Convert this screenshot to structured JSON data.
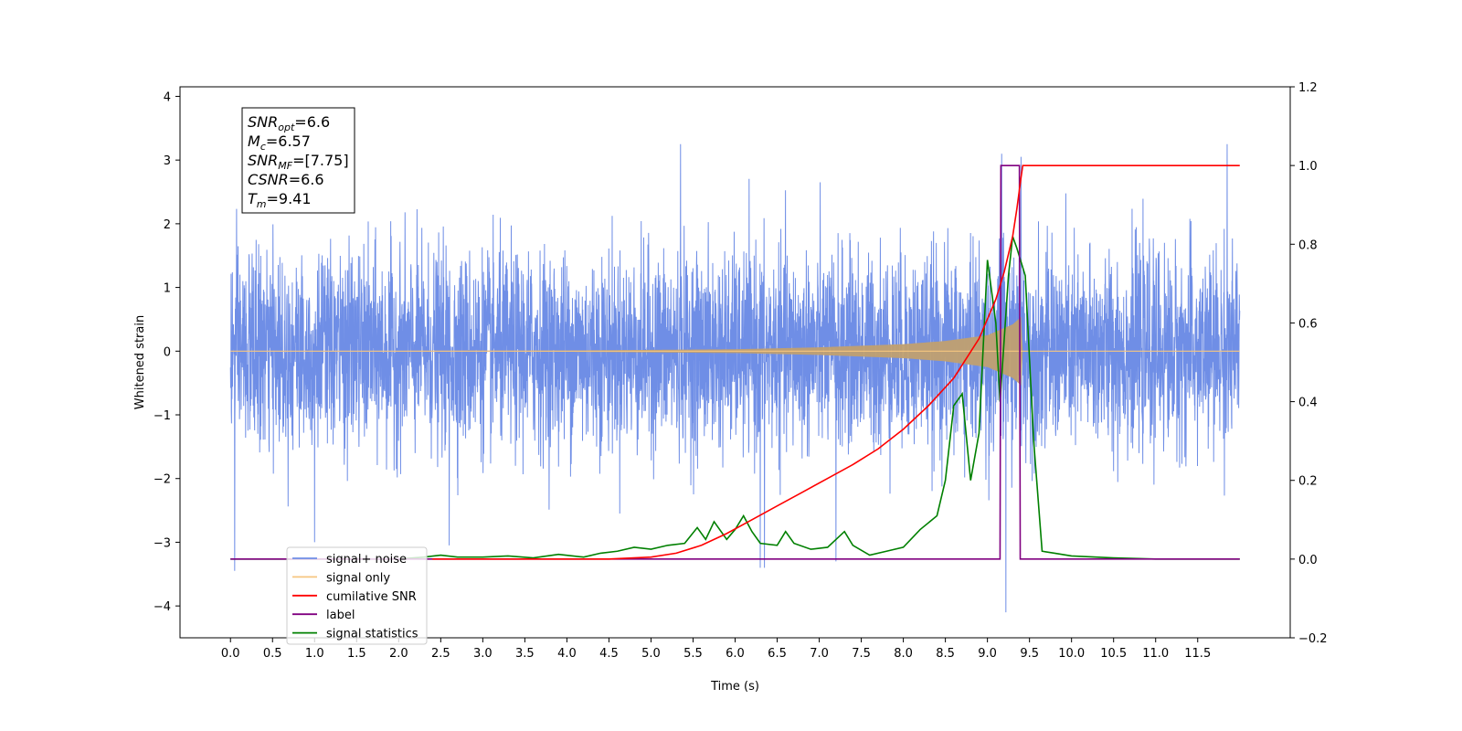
{
  "chart_data": {
    "type": "line",
    "xlabel": "Time (s)",
    "ylabel_left": "Whitened strain",
    "ylabel_right": "",
    "xlim": [
      -0.6,
      12.6
    ],
    "ylim_left": [
      -4.5,
      4.15
    ],
    "ylim_right": [
      -0.2,
      1.2
    ],
    "x_ticks": [
      "0.0",
      "0.5",
      "1.0",
      "1.5",
      "2.0",
      "2.5",
      "3.0",
      "3.5",
      "4.0",
      "4.5",
      "5.0",
      "5.5",
      "6.0",
      "6.5",
      "7.0",
      "7.5",
      "8.0",
      "8.5",
      "9.0",
      "9.5",
      "10.0",
      "10.5",
      "11.0",
      "11.5"
    ],
    "y_ticks_left": [
      "4",
      "3",
      "2",
      "1",
      "0",
      "−1",
      "−2",
      "−3",
      "−4"
    ],
    "y_ticks_right": [
      "1.2",
      "1.0",
      "0.8",
      "0.6",
      "0.4",
      "0.2",
      "0.0",
      "−0.2"
    ],
    "grid": false,
    "legend_position": "bottom-left",
    "info_box": {
      "lines": [
        {
          "sym": "SNR",
          "sub": "opt",
          "val": "=6.6"
        },
        {
          "sym": "M",
          "sub": "c",
          "val": "=6.57"
        },
        {
          "sym": "SNR",
          "sub": "MF",
          "val": "=[7.75]"
        },
        {
          "sym": "CSNR",
          "sub": "",
          "val": "=6.6"
        },
        {
          "sym": "T",
          "sub": "m",
          "val": "=9.41"
        }
      ]
    },
    "series": [
      {
        "name": "signal+ noise",
        "axis": "left",
        "color": "#6f8ee6",
        "duration": 12.0,
        "noise_sigma": 0.75,
        "extremes": [
          {
            "x": 0.05,
            "y": -3.45
          },
          {
            "x": 1.0,
            "y": -3.0
          },
          {
            "x": 2.6,
            "y": -3.05
          },
          {
            "x": 5.35,
            "y": 3.25
          },
          {
            "x": 6.3,
            "y": -3.4
          },
          {
            "x": 6.35,
            "y": -3.4
          },
          {
            "x": 7.2,
            "y": -3.3
          },
          {
            "x": 9.17,
            "y": 3.1
          },
          {
            "x": 9.22,
            "y": -4.1
          },
          {
            "x": 9.4,
            "y": 3.05
          },
          {
            "x": 11.85,
            "y": 3.25
          }
        ]
      },
      {
        "name": "signal only",
        "axis": "left",
        "color": "#f6c680",
        "envelope": [
          {
            "x": 0.0,
            "y": 0.0
          },
          {
            "x": 4.0,
            "y": 0.01
          },
          {
            "x": 6.0,
            "y": 0.03
          },
          {
            "x": 7.0,
            "y": 0.06
          },
          {
            "x": 8.0,
            "y": 0.11
          },
          {
            "x": 8.5,
            "y": 0.16
          },
          {
            "x": 9.0,
            "y": 0.25
          },
          {
            "x": 9.3,
            "y": 0.42
          },
          {
            "x": 9.41,
            "y": 0.55
          },
          {
            "x": 9.42,
            "y": 0.0
          },
          {
            "x": 12.0,
            "y": 0.0
          }
        ]
      },
      {
        "name": "cumilative SNR",
        "axis": "right",
        "color": "#ff0000",
        "points": [
          [
            2.4,
            0.0
          ],
          [
            4.0,
            0.0
          ],
          [
            4.5,
            0.0
          ],
          [
            5.0,
            0.005
          ],
          [
            5.3,
            0.015
          ],
          [
            5.6,
            0.035
          ],
          [
            5.9,
            0.065
          ],
          [
            6.2,
            0.1
          ],
          [
            6.5,
            0.135
          ],
          [
            6.8,
            0.17
          ],
          [
            7.1,
            0.205
          ],
          [
            7.4,
            0.24
          ],
          [
            7.7,
            0.28
          ],
          [
            8.0,
            0.33
          ],
          [
            8.3,
            0.39
          ],
          [
            8.6,
            0.46
          ],
          [
            8.9,
            0.56
          ],
          [
            9.1,
            0.66
          ],
          [
            9.2,
            0.73
          ],
          [
            9.3,
            0.82
          ],
          [
            9.35,
            0.89
          ],
          [
            9.4,
            0.97
          ],
          [
            9.42,
            1.0
          ],
          [
            12.0,
            1.0
          ]
        ]
      },
      {
        "name": "label",
        "axis": "right",
        "color": "#800080",
        "points": [
          [
            0.0,
            0.0
          ],
          [
            9.15,
            0.0
          ],
          [
            9.16,
            1.0
          ],
          [
            9.38,
            1.0
          ],
          [
            9.39,
            0.0
          ],
          [
            12.0,
            0.0
          ]
        ]
      },
      {
        "name": "signal statistics",
        "axis": "right",
        "color": "#008000",
        "points": [
          [
            0.0,
            0.0
          ],
          [
            2.0,
            0.0
          ],
          [
            2.3,
            0.005
          ],
          [
            2.5,
            0.01
          ],
          [
            2.7,
            0.005
          ],
          [
            3.0,
            0.005
          ],
          [
            3.3,
            0.008
          ],
          [
            3.6,
            0.003
          ],
          [
            3.9,
            0.012
          ],
          [
            4.2,
            0.005
          ],
          [
            4.4,
            0.015
          ],
          [
            4.6,
            0.02
          ],
          [
            4.8,
            0.03
          ],
          [
            5.0,
            0.025
          ],
          [
            5.2,
            0.035
          ],
          [
            5.4,
            0.04
          ],
          [
            5.55,
            0.08
          ],
          [
            5.65,
            0.05
          ],
          [
            5.75,
            0.095
          ],
          [
            5.9,
            0.05
          ],
          [
            6.0,
            0.075
          ],
          [
            6.1,
            0.11
          ],
          [
            6.2,
            0.07
          ],
          [
            6.3,
            0.04
          ],
          [
            6.5,
            0.035
          ],
          [
            6.6,
            0.07
          ],
          [
            6.7,
            0.04
          ],
          [
            6.9,
            0.025
          ],
          [
            7.1,
            0.03
          ],
          [
            7.3,
            0.07
          ],
          [
            7.4,
            0.035
          ],
          [
            7.6,
            0.01
          ],
          [
            7.8,
            0.02
          ],
          [
            8.0,
            0.03
          ],
          [
            8.2,
            0.075
          ],
          [
            8.4,
            0.11
          ],
          [
            8.5,
            0.2
          ],
          [
            8.6,
            0.39
          ],
          [
            8.7,
            0.42
          ],
          [
            8.8,
            0.2
          ],
          [
            8.9,
            0.32
          ],
          [
            9.0,
            0.76
          ],
          [
            9.1,
            0.6
          ],
          [
            9.15,
            0.4
          ],
          [
            9.25,
            0.72
          ],
          [
            9.3,
            0.82
          ],
          [
            9.35,
            0.79
          ],
          [
            9.45,
            0.72
          ],
          [
            9.55,
            0.3
          ],
          [
            9.65,
            0.02
          ],
          [
            9.8,
            0.015
          ],
          [
            10.0,
            0.008
          ],
          [
            10.5,
            0.003
          ],
          [
            11.0,
            0.0
          ],
          [
            12.0,
            0.0
          ]
        ]
      }
    ],
    "legend": [
      {
        "label": "signal+ noise",
        "color": "#6f8ee6"
      },
      {
        "label": "signal only",
        "color": "#f6c680"
      },
      {
        "label": "cumilative SNR",
        "color": "#ff0000"
      },
      {
        "label": "label",
        "color": "#800080"
      },
      {
        "label": "signal statistics",
        "color": "#008000"
      }
    ]
  }
}
